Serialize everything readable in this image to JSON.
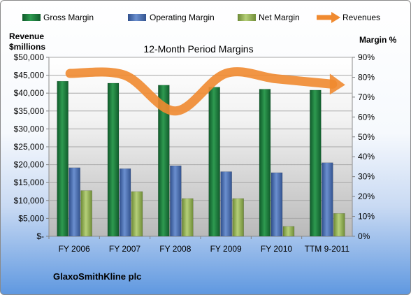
{
  "chart_data": {
    "type": "bar",
    "title": "12-Month Period Margins",
    "y_left_label_line1": "Revenue",
    "y_left_label_line2": "$millions",
    "y_right_label": "Margin %",
    "company": "GlaxoSmithKline plc",
    "categories": [
      "FY 2006",
      "FY 2007",
      "FY 2008",
      "FY 2009",
      "FY 2010",
      "TTM 9-2011"
    ],
    "left_ticks": [
      "$-",
      "$5,000",
      "$10,000",
      "$15,000",
      "$20,000",
      "$25,000",
      "$30,000",
      "$35,000",
      "$40,000",
      "$45,000",
      "$50,000"
    ],
    "right_ticks": [
      "0%",
      "10%",
      "20%",
      "30%",
      "40%",
      "50%",
      "60%",
      "70%",
      "80%",
      "90%"
    ],
    "ylim_left": [
      0,
      50000
    ],
    "ylim_right": [
      0,
      90
    ],
    "grid": true,
    "legend_position": "top",
    "series": [
      {
        "name": "Gross Margin",
        "kind": "bar",
        "axis": "right",
        "color": "#1e7a3e",
        "values": [
          78,
          77,
          76,
          75,
          74,
          73.5
        ]
      },
      {
        "name": "Operating Margin",
        "kind": "bar",
        "axis": "right",
        "color": "#4a6fb0",
        "values": [
          34.5,
          34,
          35.5,
          32.5,
          32,
          37
        ]
      },
      {
        "name": "Net Margin",
        "kind": "bar",
        "axis": "right",
        "color": "#8fad4f",
        "values": [
          23,
          22.5,
          19,
          19,
          5,
          11.5
        ]
      },
      {
        "name": "Revenues",
        "kind": "line",
        "axis": "left",
        "color": "#f08a30",
        "values": [
          45500,
          45000,
          35000,
          45500,
          44000,
          42500
        ]
      }
    ]
  }
}
